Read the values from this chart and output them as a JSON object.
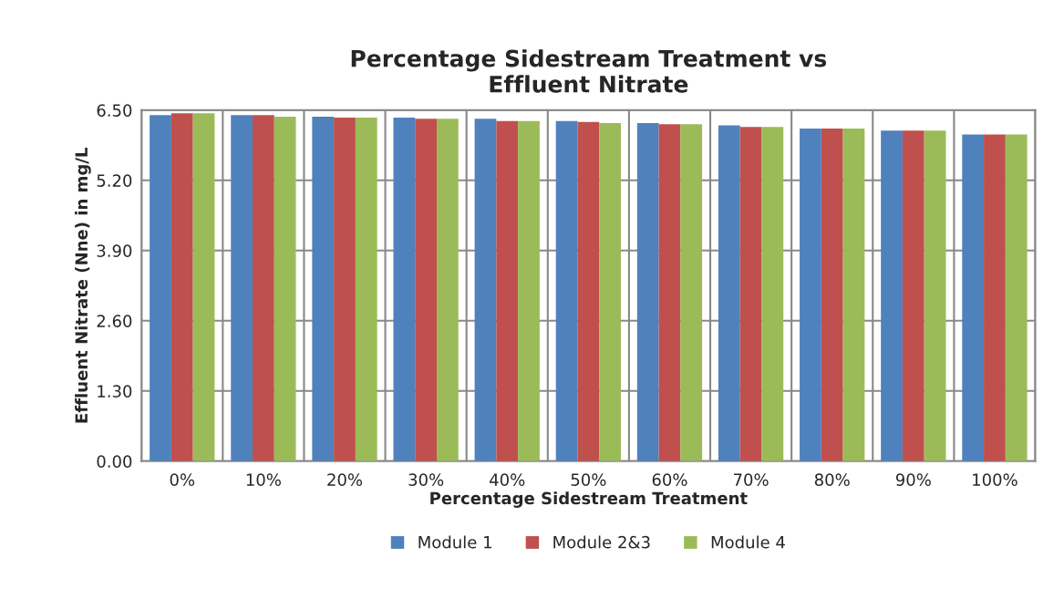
{
  "chart_data": {
    "type": "bar",
    "title": "Percentage Sidestream Treatment vs\nEffluent Nitrate",
    "xlabel": "Percentage Sidestream Treatment",
    "ylabel": "Effluent Nitrate (Nne) in mg/L",
    "categories": [
      "0%",
      "10%",
      "20%",
      "30%",
      "40%",
      "50%",
      "60%",
      "70%",
      "80%",
      "90%",
      "100%"
    ],
    "series": [
      {
        "name": "Module 1",
        "color": "#4f81bd",
        "values": [
          6.41,
          6.41,
          6.38,
          6.36,
          6.34,
          6.3,
          6.26,
          6.22,
          6.16,
          6.12,
          6.05
        ]
      },
      {
        "name": "Module 2&3",
        "color": "#c0504d",
        "values": [
          6.44,
          6.41,
          6.36,
          6.34,
          6.3,
          6.28,
          6.24,
          6.19,
          6.16,
          6.12,
          6.05
        ]
      },
      {
        "name": "Module 4",
        "color": "#9bbb59",
        "values": [
          6.44,
          6.38,
          6.36,
          6.34,
          6.3,
          6.26,
          6.24,
          6.19,
          6.16,
          6.12,
          6.05
        ]
      }
    ],
    "ylim": [
      0,
      6.5
    ],
    "yticks": [
      {
        "value": 0,
        "label": "0.00"
      },
      {
        "value": 1.3,
        "label": "1.30"
      },
      {
        "value": 2.6,
        "label": "2.60"
      },
      {
        "value": 3.9,
        "label": "3.90"
      },
      {
        "value": 5.2,
        "label": "5.20"
      },
      {
        "value": 6.5,
        "label": "6.50"
      }
    ],
    "grid": "y",
    "legend": "bottom"
  }
}
